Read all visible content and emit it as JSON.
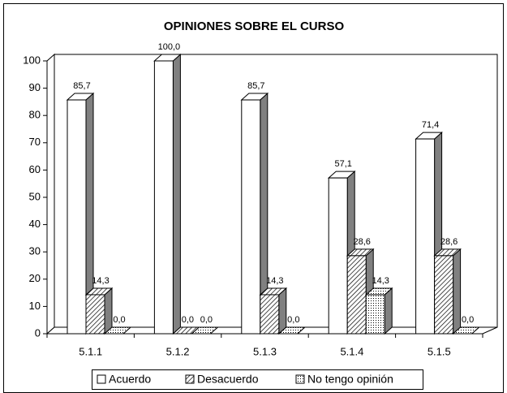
{
  "chart_data": {
    "type": "bar3d",
    "title": "OPINIONES SOBRE EL CURSO",
    "categories": [
      "5.1.1",
      "5.1.2",
      "5.1.3",
      "5.1.4",
      "5.1.5"
    ],
    "series": [
      {
        "name": "Acuerdo",
        "color": "#ffffff",
        "pattern": "solid",
        "values": [
          85.7,
          100,
          85.7,
          57.1,
          71.4
        ],
        "value_labels": [
          "85,7",
          "100,0",
          "85,7",
          "57,1",
          "71,4"
        ]
      },
      {
        "name": "Desacuerdo",
        "color": "#ffffff",
        "pattern": "hatch",
        "values": [
          14.3,
          0,
          14.3,
          28.6,
          28.6
        ],
        "value_labels": [
          "14,3",
          "0,0",
          "14,3",
          "28,6",
          "28,6"
        ]
      },
      {
        "name": "No tengo opinión",
        "color": "#ffffff",
        "pattern": "dots",
        "values": [
          0,
          0,
          0,
          14.3,
          0
        ],
        "value_labels": [
          "0,0",
          "0,0",
          "0,0",
          "14,3",
          "0,0"
        ]
      }
    ],
    "ylim": [
      0,
      100
    ],
    "yticks": [
      0,
      10,
      20,
      30,
      40,
      50,
      60,
      70,
      80,
      90,
      100
    ],
    "legend": "bottom"
  }
}
